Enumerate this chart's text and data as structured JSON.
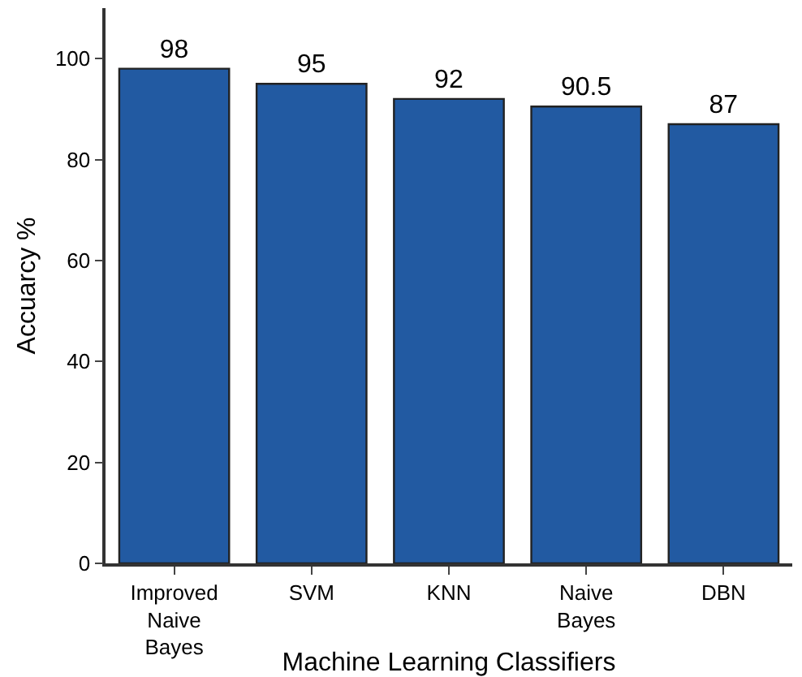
{
  "chart_data": {
    "type": "bar",
    "xlabel": "Machine Learning Classifiers",
    "ylabel": "Accuarcy %",
    "categories": [
      "Improved\nNaive\nBayes",
      "SVM",
      "KNN",
      "Naive\nBayes",
      "DBN"
    ],
    "values": [
      98,
      95,
      92,
      90.5,
      87
    ],
    "color": "#225aa2",
    "ylim": [
      0,
      110
    ],
    "yticks": [
      0,
      20,
      40,
      60,
      80,
      100
    ],
    "data_labels": true
  }
}
